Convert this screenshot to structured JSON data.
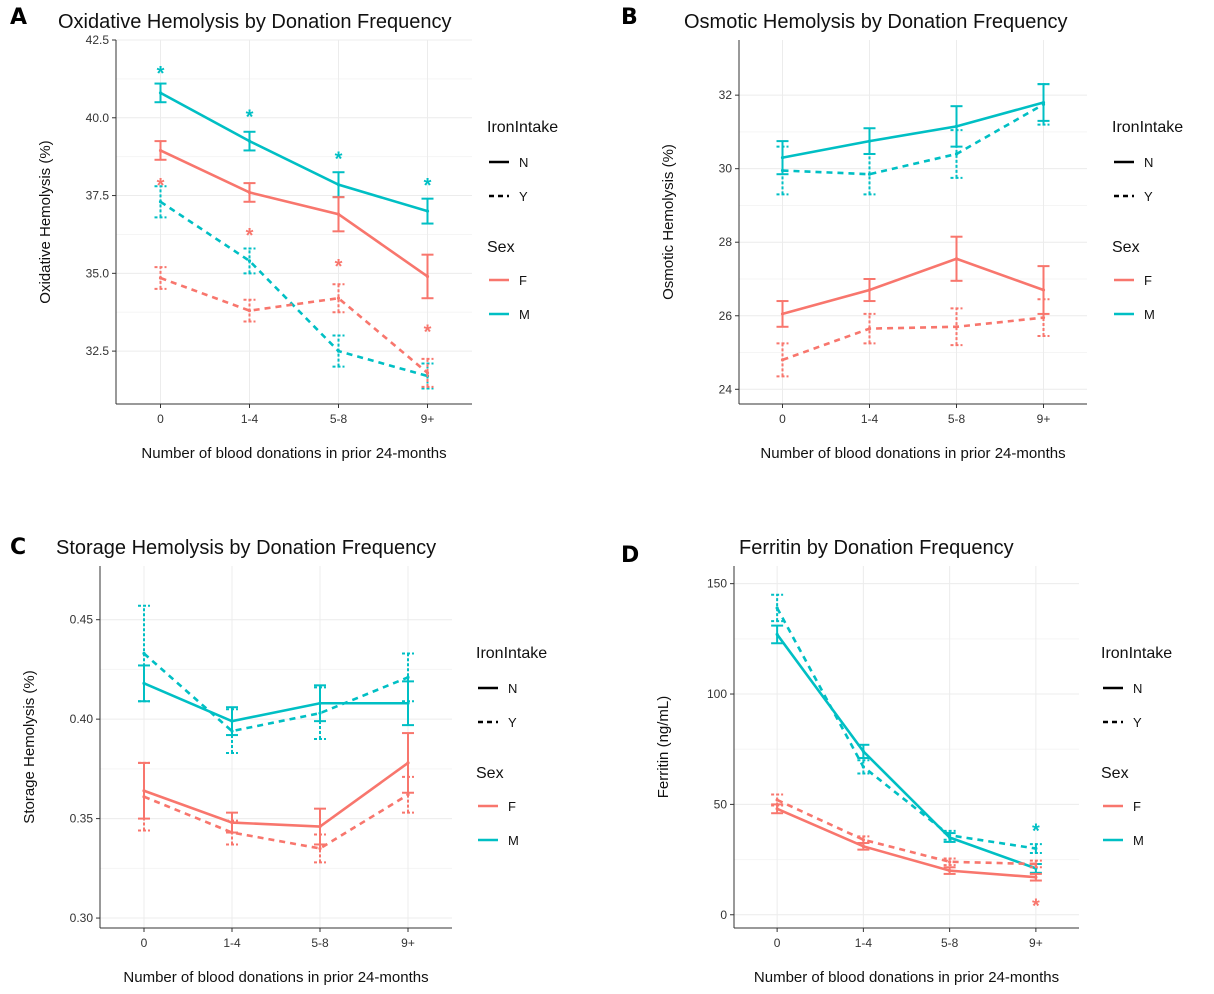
{
  "colors": {
    "F": "#F8766D",
    "M": "#00BFC4",
    "grid": "#ececec",
    "axis": "#333333"
  },
  "legend": {
    "iron_title": "IronIntake",
    "iron_items": [
      {
        "label": "N",
        "dash": "solid"
      },
      {
        "label": "Y",
        "dash": "dashed"
      }
    ],
    "sex_title": "Sex",
    "sex_items": [
      {
        "label": "F",
        "color_key": "F"
      },
      {
        "label": "M",
        "color_key": "M"
      }
    ]
  },
  "chart_data": [
    {
      "panel": "A",
      "type": "line",
      "title": "Oxidative Hemolysis by Donation Frequency",
      "xlabel": "Number of blood donations in prior 24-months",
      "ylabel": "Oxidative Hemolysis (%)",
      "categories": [
        "0",
        "1-4",
        "5-8",
        "9+"
      ],
      "ylim": [
        30.8,
        42.5
      ],
      "yticks": [
        32.5,
        35.0,
        37.5,
        40.0,
        42.5
      ],
      "ytick_labels": [
        "32.5",
        "35.0",
        "37.5",
        "40.0",
        "42.5"
      ],
      "series": [
        {
          "sex": "M",
          "iron": "N",
          "values": [
            40.8,
            39.25,
            37.85,
            37.0
          ],
          "err": [
            0.3,
            0.3,
            0.4,
            0.4
          ]
        },
        {
          "sex": "M",
          "iron": "Y",
          "values": [
            37.3,
            35.4,
            32.5,
            31.7
          ],
          "err": [
            0.5,
            0.4,
            0.5,
            0.4
          ]
        },
        {
          "sex": "F",
          "iron": "N",
          "values": [
            38.95,
            37.6,
            36.9,
            34.9
          ],
          "err": [
            0.3,
            0.3,
            0.55,
            0.7
          ]
        },
        {
          "sex": "F",
          "iron": "Y",
          "values": [
            34.85,
            33.8,
            34.2,
            31.8
          ],
          "err": [
            0.35,
            0.35,
            0.45,
            0.45
          ]
        }
      ],
      "stars": [
        {
          "sex": "M",
          "xi": 0,
          "y": 41.5
        },
        {
          "sex": "M",
          "xi": 1,
          "y": 40.1
        },
        {
          "sex": "M",
          "xi": 2,
          "y": 38.75
        },
        {
          "sex": "M",
          "xi": 3,
          "y": 37.9
        },
        {
          "sex": "F",
          "xi": 0,
          "y": 37.9
        },
        {
          "sex": "F",
          "xi": 1,
          "y": 36.3
        },
        {
          "sex": "F",
          "xi": 2,
          "y": 35.3
        },
        {
          "sex": "F",
          "xi": 3,
          "y": 33.2
        }
      ]
    },
    {
      "panel": "B",
      "type": "line",
      "title": "Osmotic Hemolysis by Donation Frequency",
      "xlabel": "Number of blood donations in prior 24-months",
      "ylabel": "Osmotic Hemolysis (%)",
      "categories": [
        "0",
        "1-4",
        "5-8",
        "9+"
      ],
      "ylim": [
        23.6,
        33.5
      ],
      "yticks": [
        24,
        26,
        28,
        30,
        32
      ],
      "ytick_labels": [
        "24",
        "26",
        "28",
        "30",
        "32"
      ],
      "series": [
        {
          "sex": "M",
          "iron": "N",
          "values": [
            30.3,
            30.75,
            31.15,
            31.8
          ],
          "err": [
            0.45,
            0.35,
            0.55,
            0.5
          ]
        },
        {
          "sex": "M",
          "iron": "Y",
          "values": [
            29.95,
            29.85,
            30.4,
            31.75
          ],
          "err": [
            0.65,
            0.55,
            0.65,
            0.55
          ]
        },
        {
          "sex": "F",
          "iron": "N",
          "values": [
            26.05,
            26.7,
            27.55,
            26.7
          ],
          "err": [
            0.35,
            0.3,
            0.6,
            0.65
          ]
        },
        {
          "sex": "F",
          "iron": "Y",
          "values": [
            24.8,
            25.65,
            25.7,
            25.95
          ],
          "err": [
            0.45,
            0.4,
            0.5,
            0.5
          ]
        }
      ],
      "stars": []
    },
    {
      "panel": "C",
      "type": "line",
      "title": "Storage Hemolysis by Donation Frequency",
      "xlabel": "Number of blood donations in prior 24-months",
      "ylabel": "Storage Hemolysis (%)",
      "categories": [
        "0",
        "1-4",
        "5-8",
        "9+"
      ],
      "ylim": [
        0.295,
        0.477
      ],
      "yticks": [
        0.3,
        0.35,
        0.4,
        0.45
      ],
      "ytick_labels": [
        "0.30",
        "0.35",
        "0.40",
        "0.45"
      ],
      "series": [
        {
          "sex": "M",
          "iron": "N",
          "values": [
            0.418,
            0.399,
            0.408,
            0.408
          ],
          "err": [
            0.009,
            0.007,
            0.009,
            0.011
          ]
        },
        {
          "sex": "M",
          "iron": "Y",
          "values": [
            0.433,
            0.394,
            0.403,
            0.421
          ],
          "err": [
            0.024,
            0.011,
            0.013,
            0.012
          ]
        },
        {
          "sex": "F",
          "iron": "N",
          "values": [
            0.364,
            0.348,
            0.346,
            0.378
          ],
          "err": [
            0.014,
            0.005,
            0.009,
            0.015
          ]
        },
        {
          "sex": "F",
          "iron": "Y",
          "values": [
            0.361,
            0.343,
            0.335,
            0.362
          ],
          "err": [
            0.017,
            0.006,
            0.007,
            0.009
          ]
        }
      ],
      "stars": []
    },
    {
      "panel": "D",
      "type": "line",
      "title": "Ferritin by Donation Frequency",
      "xlabel": "Number of blood donations in prior 24-months",
      "ylabel": "Ferritin (ng/mL)",
      "categories": [
        "0",
        "1-4",
        "5-8",
        "9+"
      ],
      "ylim": [
        -6,
        158
      ],
      "yticks": [
        0,
        50,
        100,
        150
      ],
      "ytick_labels": [
        "0",
        "50",
        "100",
        "150"
      ],
      "series": [
        {
          "sex": "M",
          "iron": "N",
          "values": [
            127,
            74,
            35,
            21
          ],
          "err": [
            4,
            3,
            2,
            2
          ]
        },
        {
          "sex": "M",
          "iron": "Y",
          "values": [
            139,
            67,
            36,
            30
          ],
          "err": [
            6,
            3,
            2,
            2
          ]
        },
        {
          "sex": "F",
          "iron": "N",
          "values": [
            48,
            31,
            20,
            17
          ],
          "err": [
            2,
            1.5,
            1.5,
            1.5
          ]
        },
        {
          "sex": "F",
          "iron": "Y",
          "values": [
            52,
            34,
            24,
            23
          ],
          "err": [
            2.5,
            1.5,
            1.5,
            1.5
          ]
        }
      ],
      "stars": [
        {
          "sex": "M",
          "xi": 3,
          "y": 39
        },
        {
          "sex": "F",
          "xi": 3,
          "y": 5
        }
      ]
    }
  ]
}
